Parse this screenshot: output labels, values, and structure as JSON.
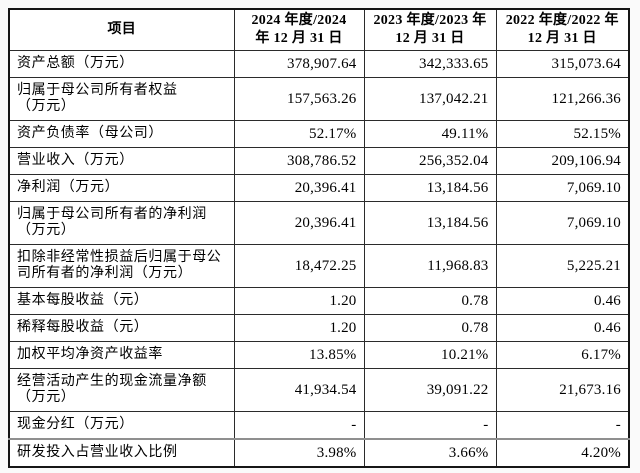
{
  "table": {
    "header": {
      "item": "项目",
      "col_2024": "2024 年度/2024\n年 12 月 31 日",
      "col_2023": "2023 年度/2023 年\n12 月 31 日",
      "col_2022": "2022 年度/2022 年\n12 月 31 日"
    },
    "rows": [
      {
        "label": "资产总额（万元）",
        "y2024": "378,907.64",
        "y2023": "342,333.65",
        "y2022": "315,073.64"
      },
      {
        "label": "归属于母公司所有者权益\n（万元）",
        "y2024": "157,563.26",
        "y2023": "137,042.21",
        "y2022": "121,266.36"
      },
      {
        "label": "资产负债率（母公司）",
        "y2024": "52.17%",
        "y2023": "49.11%",
        "y2022": "52.15%"
      },
      {
        "label": "营业收入（万元）",
        "y2024": "308,786.52",
        "y2023": "256,352.04",
        "y2022": "209,106.94"
      },
      {
        "label": "净利润（万元）",
        "y2024": "20,396.41",
        "y2023": "13,184.56",
        "y2022": "7,069.10"
      },
      {
        "label": "归属于母公司所有者的净利润\n（万元）",
        "y2024": "20,396.41",
        "y2023": "13,184.56",
        "y2022": "7,069.10"
      },
      {
        "label": "扣除非经常性损益后归属于母公\n司所有者的净利润（万元）",
        "y2024": "18,472.25",
        "y2023": "11,968.83",
        "y2022": "5,225.21"
      },
      {
        "label": "基本每股收益（元）",
        "y2024": "1.20",
        "y2023": "0.78",
        "y2022": "0.46"
      },
      {
        "label": "稀释每股收益（元）",
        "y2024": "1.20",
        "y2023": "0.78",
        "y2022": "0.46"
      },
      {
        "label": "加权平均净资产收益率",
        "y2024": "13.85%",
        "y2023": "10.21%",
        "y2022": "6.17%"
      },
      {
        "label": "经营活动产生的现金流量净额\n（万元）",
        "y2024": "41,934.54",
        "y2023": "39,091.22",
        "y2022": "21,673.16"
      },
      {
        "label": "现金分红（万元）",
        "y2024": "-",
        "y2023": "-",
        "y2022": "-"
      },
      {
        "label": "研发投入占营业收入比例",
        "y2024": "3.98%",
        "y2023": "3.66%",
        "y2022": "4.20%"
      }
    ]
  }
}
